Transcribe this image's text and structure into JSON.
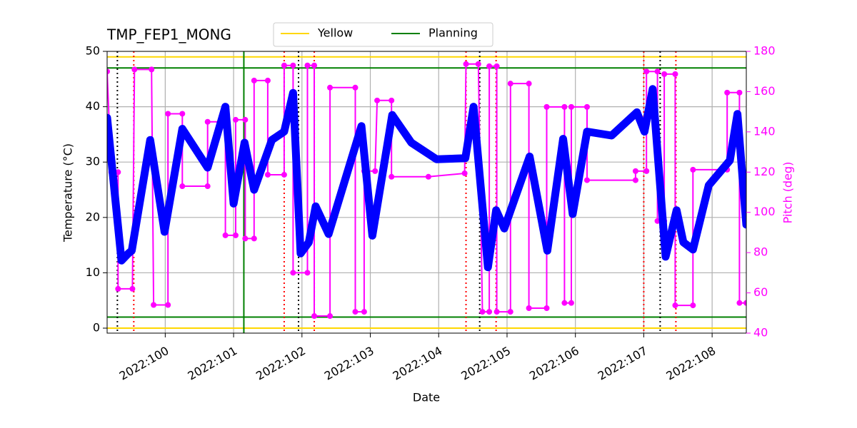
{
  "chart_data": {
    "type": "line",
    "title": "TMP_FEP1_MONG",
    "xlabel": "Date",
    "ylabel": "Temperature (°C)",
    "y2label": "Pitch (deg)",
    "y2color": "magenta",
    "grid": true,
    "legend": "top",
    "xlim": [
      99.15,
      108.5
    ],
    "xticks": [
      {
        "value": 100,
        "label": "2022:100"
      },
      {
        "value": 101,
        "label": "2022:101"
      },
      {
        "value": 102,
        "label": "2022:102"
      },
      {
        "value": 103,
        "label": "2022:103"
      },
      {
        "value": 104,
        "label": "2022:104"
      },
      {
        "value": 105,
        "label": "2022:105"
      },
      {
        "value": 106,
        "label": "2022:106"
      },
      {
        "value": 107,
        "label": "2022:107"
      },
      {
        "value": 108,
        "label": "2022:108"
      }
    ],
    "ylim": [
      -0.9,
      50
    ],
    "yticks": [
      0,
      10,
      20,
      30,
      40,
      50
    ],
    "y2lim": [
      40,
      180
    ],
    "y2ticks": [
      40,
      60,
      80,
      100,
      120,
      140,
      160,
      180
    ],
    "limit_lines": [
      {
        "name": "Yellow",
        "color": "gold",
        "values": [
          0,
          49
        ]
      },
      {
        "name": "Planning",
        "color": "green",
        "values": [
          2,
          47
        ]
      }
    ],
    "vlines": [
      {
        "color": "green",
        "style": "solid",
        "x": [
          101.15
        ]
      },
      {
        "color": "black",
        "style": "dotted",
        "x": [
          99.3,
          101.95,
          104.6,
          107.24
        ]
      },
      {
        "color": "red",
        "style": "dotted",
        "x": [
          99.54,
          101.74,
          102.18,
          104.4,
          104.84,
          107.0,
          107.47
        ]
      }
    ],
    "series": [
      {
        "color": "magenta",
        "axis": "y2",
        "marker": true,
        "x": [
          99.15,
          99.21,
          99.31,
          99.31,
          99.52,
          99.55,
          99.8,
          99.83,
          100.04,
          100.04,
          100.25,
          100.25,
          100.62,
          100.62,
          100.88,
          100.88,
          101.03,
          101.03,
          101.17,
          101.17,
          101.3,
          101.3,
          101.5,
          101.5,
          101.74,
          101.74,
          101.87,
          101.87,
          102.08,
          102.08,
          102.18,
          102.18,
          102.41,
          102.41,
          102.78,
          102.78,
          102.91,
          102.91,
          103.07,
          103.1,
          103.31,
          103.31,
          103.85,
          104.38,
          104.4,
          104.58,
          104.64,
          104.74,
          104.74,
          104.85,
          104.85,
          105.05,
          105.05,
          105.32,
          105.32,
          105.58,
          105.58,
          105.84,
          105.84,
          105.94,
          105.94,
          106.17,
          106.17,
          106.88,
          106.88,
          107.04,
          107.04,
          107.2,
          107.2,
          107.3,
          107.3,
          107.46,
          107.46,
          107.72,
          107.72,
          108.22,
          108.22,
          108.4,
          108.4,
          108.5
        ],
        "values": [
          170,
          120,
          120,
          62,
          62,
          171,
          171,
          54,
          54,
          149,
          149,
          113,
          113,
          145,
          145,
          88.6,
          88.6,
          146,
          146,
          87,
          87,
          165.5,
          165.5,
          118.7,
          118.7,
          173,
          173,
          70,
          70,
          173,
          173,
          48.5,
          48.5,
          162,
          162,
          50.6,
          50.6,
          120.5,
          120.5,
          155.6,
          155.6,
          117.7,
          117.7,
          119.4,
          173.7,
          173.7,
          50.6,
          50.6,
          172.6,
          172.6,
          50.6,
          50.6,
          164,
          164,
          52.4,
          52.4,
          152.4,
          152.4,
          55,
          55,
          152.4,
          152.4,
          116,
          116,
          120.5,
          120.5,
          170,
          170,
          95.7,
          95.7,
          168.7,
          168.7,
          53.8,
          53.8,
          121.2,
          121.2,
          159.5,
          159.5,
          55,
          55
        ]
      },
      {
        "color": "blue",
        "marker": false,
        "x": [
          99.15,
          99.36,
          99.46,
          99.51,
          99.78,
          99.99,
          100.25,
          100.62,
          100.88,
          101.0,
          101.16,
          101.3,
          101.56,
          101.74,
          101.87,
          101.98,
          102.1,
          102.2,
          102.39,
          102.87,
          103.03,
          103.32,
          103.6,
          103.97,
          104.39,
          104.51,
          104.72,
          104.84,
          104.96,
          105.33,
          105.59,
          105.82,
          105.96,
          106.17,
          106.53,
          106.9,
          107.01,
          107.13,
          107.32,
          107.48,
          107.58,
          107.72,
          107.95,
          108.26,
          108.37,
          108.5
        ],
        "values": [
          38,
          12.2,
          13.5,
          14,
          34,
          17.4,
          36,
          29,
          40,
          22.5,
          33.5,
          25,
          34,
          35.5,
          42.5,
          13.5,
          15.5,
          22,
          17,
          36.5,
          16.7,
          38.5,
          33.5,
          30.5,
          30.7,
          40,
          11,
          21.3,
          18,
          31,
          14,
          34.2,
          20.6,
          35.5,
          34.8,
          39,
          35.5,
          43.2,
          12.9,
          21.3,
          15.5,
          14.2,
          25.8,
          30.3,
          38.7,
          18.7
        ]
      }
    ]
  }
}
